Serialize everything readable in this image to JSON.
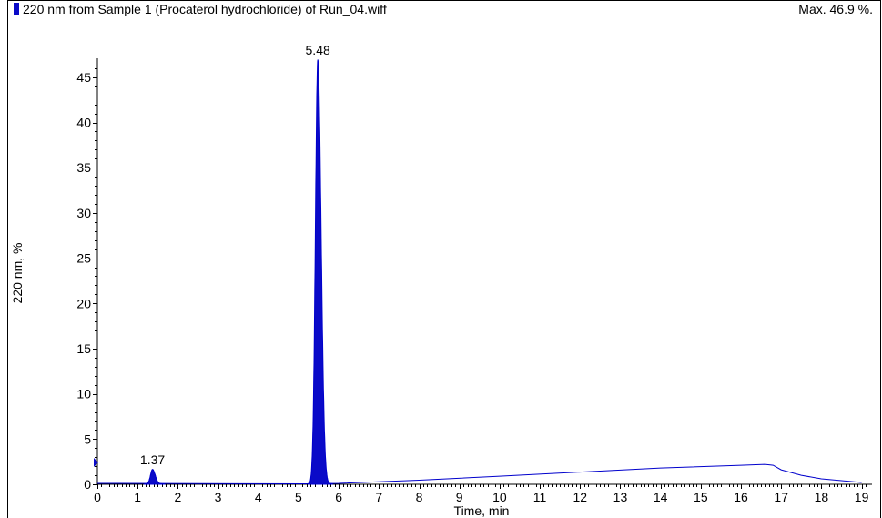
{
  "header": {
    "title": "220 nm from Sample 1 (Procaterol hydrochloride) of Run_04.wiff",
    "max_label": "Max. 46.9 %."
  },
  "colors": {
    "trace": "#0000cc",
    "fill": "#0a0ac8",
    "axis": "#000000"
  },
  "chart_data": {
    "type": "area",
    "xlabel": "Time, min",
    "ylabel": "220 nm, %",
    "xlim": [
      0,
      19.1
    ],
    "ylim": [
      0,
      46.9
    ],
    "x_ticks": [
      0,
      1,
      2,
      3,
      4,
      5,
      6,
      7,
      8,
      9,
      10,
      11,
      12,
      13,
      14,
      15,
      16,
      17,
      18,
      19
    ],
    "y_ticks": [
      0,
      5,
      10,
      15,
      20,
      25,
      30,
      35,
      40,
      45
    ],
    "grid": false,
    "peaks": [
      {
        "rt": 1.37,
        "label": "1.37",
        "height": 1.6,
        "width": 0.05
      },
      {
        "rt": 5.48,
        "label": "5.48",
        "height": 46.9,
        "width": 0.06
      }
    ],
    "baseline": [
      [
        0,
        0.1
      ],
      [
        5.2,
        0.05
      ],
      [
        6,
        0.1
      ],
      [
        8,
        0.45
      ],
      [
        10,
        0.9
      ],
      [
        12,
        1.35
      ],
      [
        14,
        1.8
      ],
      [
        16,
        2.1
      ],
      [
        16.6,
        2.2
      ],
      [
        16.8,
        2.1
      ],
      [
        17.0,
        1.6
      ],
      [
        17.5,
        1.0
      ],
      [
        18.0,
        0.6
      ],
      [
        19.0,
        0.2
      ]
    ]
  }
}
